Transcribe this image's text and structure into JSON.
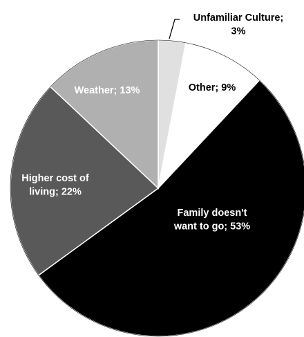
{
  "chart_data": {
    "type": "pie",
    "slices": [
      {
        "label": "Unfamiliar Culture; 3%",
        "value": 3,
        "color": "#e0e0e0"
      },
      {
        "label": "Other; 9%",
        "value": 9,
        "color": "#ffffff"
      },
      {
        "label": "Family doesn't want to go; 53%",
        "value": 53,
        "color": "#000000"
      },
      {
        "label": "Higher cost of living; 22%",
        "value": 22,
        "color": "#595959"
      },
      {
        "label": "Weather; 13%",
        "value": 13,
        "color": "#b0b0b0"
      }
    ],
    "legend": "none",
    "data_labels": true
  }
}
